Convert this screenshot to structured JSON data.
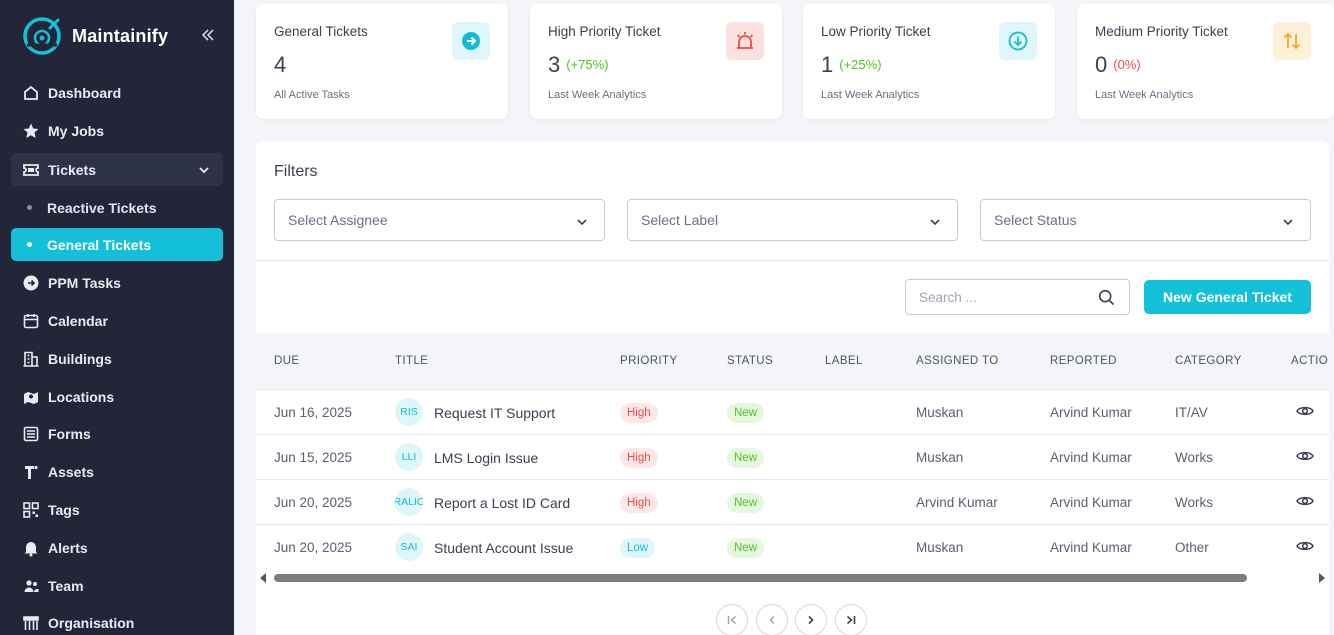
{
  "app": {
    "name": "Maintainify"
  },
  "sidebar": {
    "items": [
      {
        "label": "Dashboard",
        "icon": "home-icon"
      },
      {
        "label": "My Jobs",
        "icon": "star-icon"
      },
      {
        "label": "Tickets",
        "icon": "ticket-icon"
      },
      {
        "label": "PPM Tasks",
        "icon": "arrow-circle-icon"
      },
      {
        "label": "Calendar",
        "icon": "calendar-icon"
      },
      {
        "label": "Buildings",
        "icon": "building-icon"
      },
      {
        "label": "Locations",
        "icon": "map-pin-icon"
      },
      {
        "label": "Forms",
        "icon": "form-icon"
      },
      {
        "label": "Assets",
        "icon": "asset-icon"
      },
      {
        "label": "Tags",
        "icon": "qr-icon"
      },
      {
        "label": "Alerts",
        "icon": "bell-icon"
      },
      {
        "label": "Team",
        "icon": "team-icon"
      },
      {
        "label": "Organisation",
        "icon": "organisation-icon"
      }
    ],
    "sub_items": [
      {
        "label": "Reactive Tickets"
      },
      {
        "label": "General Tickets"
      }
    ]
  },
  "stats": [
    {
      "title": "General Tickets",
      "value": "4",
      "delta": "",
      "sub": "All Active Tasks",
      "icon": "arrow-right-circle-icon",
      "color": "#13bcd4"
    },
    {
      "title": "High Priority Ticket",
      "value": "3",
      "delta": "(+75%)",
      "sub": "Last Week Analytics",
      "icon": "alarm-icon",
      "color": "#ef4b4b"
    },
    {
      "title": "Low Priority Ticket",
      "value": "1",
      "delta": "(+25%)",
      "sub": "Last Week Analytics",
      "icon": "arrow-down-circle-icon",
      "color": "#13bcd4"
    },
    {
      "title": "Medium Priority Ticket",
      "value": "0",
      "delta": "(0%)",
      "sub": "Last Week Analytics",
      "icon": "sort-arrows-icon",
      "color": "#f5a623"
    }
  ],
  "filters": {
    "title": "Filters",
    "assignee": "Select Assignee",
    "label": "Select Label",
    "status": "Select Status"
  },
  "search": {
    "placeholder": "Search ..."
  },
  "new_button": "New General Ticket",
  "table": {
    "columns": [
      "DUE",
      "TITLE",
      "PRIORITY",
      "STATUS",
      "LABEL",
      "ASSIGNED TO",
      "REPORTED",
      "CATEGORY",
      "ACTIONS"
    ],
    "rows": [
      {
        "due": "Jun 16, 2025",
        "initials": "RIS",
        "title": "Request IT Support",
        "priority": "High",
        "status": "New",
        "label": "",
        "assigned": "Muskan",
        "reported": "Arvind Kumar",
        "category": "IT/AV"
      },
      {
        "due": "Jun 15, 2025",
        "initials": "LLI",
        "title": "LMS Login Issue",
        "priority": "High",
        "status": "New",
        "label": "",
        "assigned": "Muskan",
        "reported": "Arvind Kumar",
        "category": "Works"
      },
      {
        "due": "Jun 20, 2025",
        "initials": "RALIC",
        "title": "Report a Lost ID Card",
        "priority": "High",
        "status": "New",
        "label": "",
        "assigned": "Arvind Kumar",
        "reported": "Arvind Kumar",
        "category": "Works"
      },
      {
        "due": "Jun 20, 2025",
        "initials": "SAI",
        "title": "Student Account Issue",
        "priority": "Low",
        "status": "New",
        "label": "",
        "assigned": "Muskan",
        "reported": "Arvind Kumar",
        "category": "Other"
      }
    ]
  },
  "colors": {
    "accent": "#13c0d8",
    "sidebar_bg": "#232638",
    "success": "#4fc420",
    "danger": "#ef4b4b"
  }
}
